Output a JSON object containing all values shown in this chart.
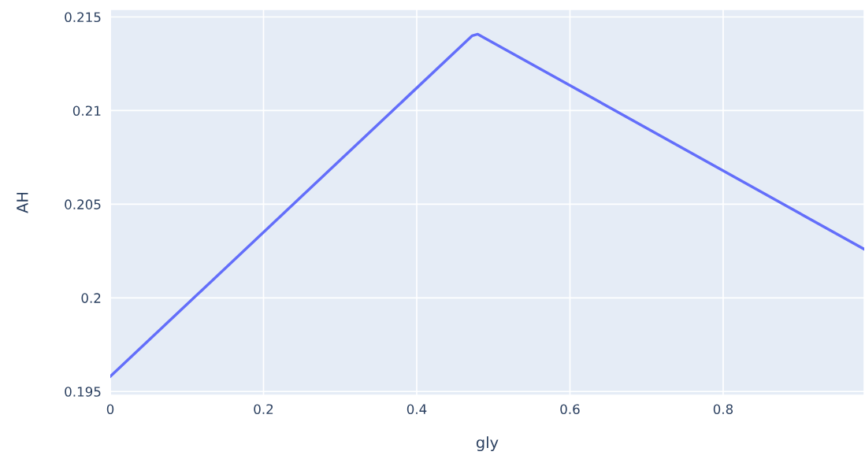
{
  "chart_data": {
    "type": "line",
    "xlabel": "gly",
    "ylabel": "AH",
    "x": [
      0,
      0.4725,
      0.4797,
      0.984
    ],
    "series": [
      {
        "color": "#636efa",
        "values": [
          0.1958,
          0.214,
          0.21408,
          0.2026
        ]
      }
    ],
    "xlim": [
      0,
      0.984
    ],
    "ylim": [
      0.1948,
      0.2154
    ],
    "xticks": [
      0,
      0.2,
      0.4,
      0.6,
      0.8
    ],
    "yticks": [
      0.195,
      0.2,
      0.205,
      0.21,
      0.215
    ],
    "grid": true,
    "line_style": "solid",
    "marker": "none"
  }
}
